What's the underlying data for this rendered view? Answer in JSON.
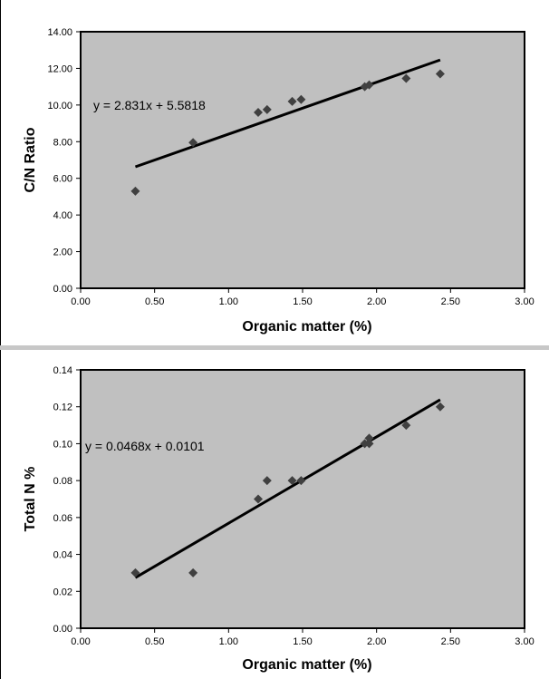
{
  "chart_data": [
    {
      "type": "scatter",
      "title": "",
      "xlabel": "Organic matter (%)",
      "ylabel": "C/N Ratio",
      "xlim": [
        0,
        3
      ],
      "ylim": [
        0,
        14
      ],
      "xticks": [
        "0.00",
        "0.50",
        "1.00",
        "1.50",
        "2.00",
        "2.50",
        "3.00"
      ],
      "yticks": [
        "0.00",
        "2.00",
        "4.00",
        "6.00",
        "8.00",
        "10.00",
        "12.00",
        "14.00"
      ],
      "x": [
        0.37,
        0.76,
        1.2,
        1.26,
        1.43,
        1.49,
        1.92,
        1.95,
        2.2,
        2.43
      ],
      "y": [
        5.3,
        7.95,
        9.6,
        9.75,
        10.2,
        10.3,
        11.0,
        11.1,
        11.45,
        11.7
      ],
      "trendline": {
        "slope": 2.831,
        "intercept": 5.5818,
        "x_range": [
          0.37,
          2.43
        ]
      },
      "equation": "y = 2.831x + 5.5818",
      "grid": false,
      "background": "#c0c0c0",
      "marker_color": "#404040"
    },
    {
      "type": "scatter",
      "title": "",
      "xlabel": "Organic matter (%)",
      "ylabel": "Total N %",
      "xlim": [
        0,
        3
      ],
      "ylim": [
        0,
        0.14
      ],
      "xticks": [
        "0.00",
        "0.50",
        "1.00",
        "1.50",
        "2.00",
        "2.50",
        "3.00"
      ],
      "yticks": [
        "0.00",
        "0.02",
        "0.04",
        "0.06",
        "0.08",
        "0.10",
        "0.12",
        "0.14"
      ],
      "x": [
        0.37,
        0.76,
        1.2,
        1.26,
        1.43,
        1.49,
        1.92,
        1.95,
        1.95,
        2.2,
        2.43
      ],
      "y": [
        0.03,
        0.03,
        0.07,
        0.08,
        0.08,
        0.08,
        0.1,
        0.103,
        0.1,
        0.11,
        0.12
      ],
      "trendline": {
        "slope": 0.0468,
        "intercept": 0.0101,
        "x_range": [
          0.37,
          2.43
        ]
      },
      "equation": "y = 0.0468x + 0.0101",
      "grid": false,
      "background": "#c0c0c0",
      "marker_color": "#404040"
    }
  ]
}
